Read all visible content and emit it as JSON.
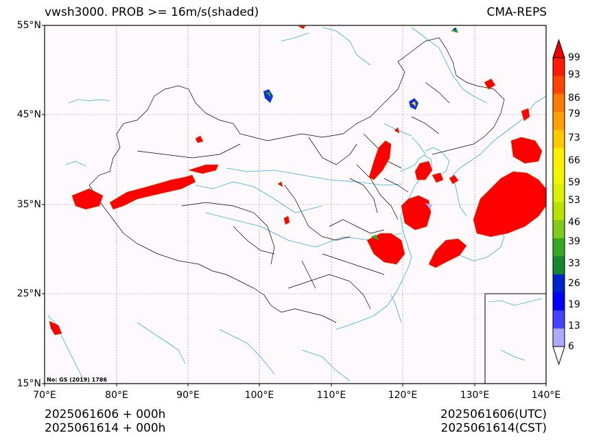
{
  "header": {
    "title_left": "vwsh3000. PROB >= 16m/s(shaded)",
    "title_right": "CMA-REPS"
  },
  "axes": {
    "lat_labels": [
      "55°N",
      "45°N",
      "35°N",
      "25°N",
      "15°N"
    ],
    "lon_labels": [
      "70°E",
      "80°E",
      "90°E",
      "100°E",
      "110°E",
      "120°E",
      "130°E",
      "140°E"
    ]
  },
  "colorbar": {
    "labels": [
      "99",
      "93",
      "86",
      "79",
      "73",
      "66",
      "59",
      "53",
      "46",
      "39",
      "33",
      "26",
      "19",
      "13",
      "6"
    ],
    "colors": [
      "#ff1a00",
      "#ff4400",
      "#ff7a00",
      "#ff9f00",
      "#ffc800",
      "#ffee00",
      "#f2f500",
      "#d9f000",
      "#b8e000",
      "#7fcc18",
      "#33aa22",
      "#14882e",
      "#0022cc",
      "#0000ff",
      "#4444ff",
      "#aaaaff"
    ],
    "over_color": "#ee0000",
    "under_color": "#ffffff"
  },
  "map": {
    "background": "#fdf9fd",
    "coast_color": "#31b0e0",
    "border_color": "#000000",
    "shade_color": "#ff0000",
    "gs_number": "No: GS (2019) 1786"
  },
  "footer": {
    "left_line1": "2025061606  +  000h",
    "left_line2": "2025061614  +  000h",
    "right_line1": "2025061606(UTC)",
    "right_line2": "2025061614(CST)"
  }
}
